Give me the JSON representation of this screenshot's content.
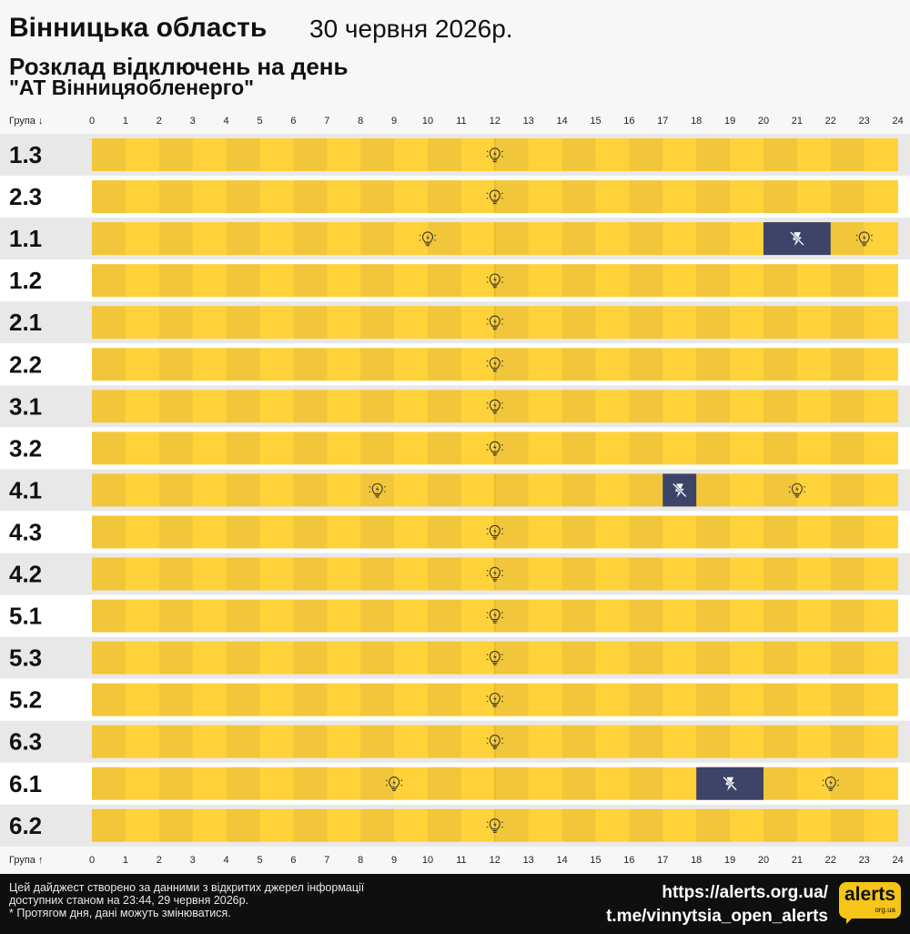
{
  "header": {
    "region": "Вінницька область",
    "date": "30 червня 2026р.",
    "subtitle": "Розклад відключень на день",
    "company": "\"АТ Вінницяобленерго\""
  },
  "chart_data": {
    "type": "table",
    "group_label_top": "Група ↓",
    "group_label_bottom": "Група ↑",
    "hours": [
      "0",
      "1",
      "2",
      "3",
      "4",
      "5",
      "6",
      "7",
      "8",
      "9",
      "10",
      "11",
      "12",
      "13",
      "14",
      "15",
      "16",
      "17",
      "18",
      "19",
      "20",
      "21",
      "22",
      "23",
      "24"
    ],
    "legend": {
      "on": "light-bulb-icon",
      "off": "no-power-icon"
    },
    "colors": {
      "on_light": "#ffd23a",
      "on_dark": "#f2c63a",
      "off": "#3d4468",
      "row_band": "#e8e8e8"
    },
    "rows": [
      {
        "group": "1.3",
        "outages": []
      },
      {
        "group": "2.3",
        "outages": []
      },
      {
        "group": "1.1",
        "outages": [
          [
            20,
            22
          ]
        ]
      },
      {
        "group": "1.2",
        "outages": []
      },
      {
        "group": "2.1",
        "outages": []
      },
      {
        "group": "2.2",
        "outages": []
      },
      {
        "group": "3.1",
        "outages": []
      },
      {
        "group": "3.2",
        "outages": []
      },
      {
        "group": "4.1",
        "outages": [
          [
            17,
            18
          ]
        ]
      },
      {
        "group": "4.3",
        "outages": []
      },
      {
        "group": "4.2",
        "outages": []
      },
      {
        "group": "5.1",
        "outages": []
      },
      {
        "group": "5.3",
        "outages": []
      },
      {
        "group": "5.2",
        "outages": []
      },
      {
        "group": "6.3",
        "outages": []
      },
      {
        "group": "6.1",
        "outages": [
          [
            18,
            20
          ]
        ]
      },
      {
        "group": "6.2",
        "outages": []
      }
    ]
  },
  "footer": {
    "note_line1": "Цей дайджест створено за данними з відкритих джерел інформації",
    "note_line2": "доступних станом на 23:44, 29 червня 2026р.",
    "note_line3": "* Протягом дня, дані можуть змінюватися.",
    "site": "https://alerts.org.ua/",
    "telegram": "t.me/vinnytsia_open_alerts",
    "logo_word": "alerts",
    "logo_sub": "org.ua"
  }
}
